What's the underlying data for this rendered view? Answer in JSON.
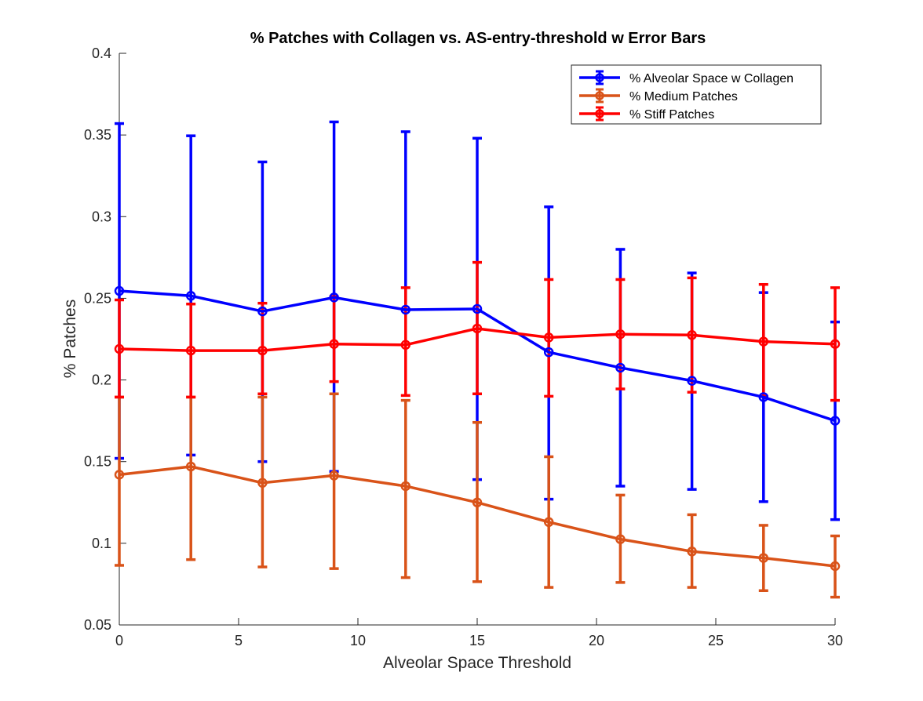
{
  "chart_data": {
    "type": "line",
    "title": "% Patches with Collagen vs. AS-entry-threshold w Error Bars",
    "xlabel": "Alveolar Space Threshold",
    "ylabel": "% Patches",
    "xlim": [
      0,
      30
    ],
    "ylim": [
      0.05,
      0.4
    ],
    "xticks": [
      0,
      5,
      10,
      15,
      20,
      25,
      30
    ],
    "yticks": [
      0.05,
      0.1,
      0.15,
      0.2,
      0.25,
      0.3,
      0.35,
      0.4
    ],
    "xtick_labels": [
      "0",
      "5",
      "10",
      "15",
      "20",
      "25",
      "30"
    ],
    "ytick_labels": [
      "0.05",
      "0.1",
      "0.15",
      "0.2",
      "0.25",
      "0.3",
      "0.35",
      "0.4"
    ],
    "grid": false,
    "legend_position": "top-right",
    "x": [
      0,
      3,
      6,
      9,
      12,
      15,
      18,
      21,
      24,
      27,
      30
    ],
    "series": [
      {
        "name": "% Alveolar Space w Collagen",
        "color": "#0000ff",
        "values": [
          0.2545,
          0.2515,
          0.242,
          0.2505,
          0.243,
          0.2435,
          0.217,
          0.2075,
          0.1995,
          0.1895,
          0.175
        ],
        "lower": [
          0.152,
          0.154,
          0.15,
          0.144,
          0.243,
          0.139,
          0.127,
          0.135,
          0.133,
          0.1255,
          0.1145
        ],
        "upper": [
          0.357,
          0.3495,
          0.3335,
          0.358,
          0.352,
          0.348,
          0.306,
          0.28,
          0.2655,
          0.2535,
          0.2355
        ]
      },
      {
        "name": "% Medium Patches",
        "color": "#d95319",
        "values": [
          0.142,
          0.147,
          0.137,
          0.1415,
          0.135,
          0.125,
          0.113,
          0.1025,
          0.095,
          0.091,
          0.086
        ],
        "lower": [
          0.0865,
          0.09,
          0.0855,
          0.0845,
          0.079,
          0.0765,
          0.073,
          0.076,
          0.073,
          0.071,
          0.067
        ],
        "upper": [
          0.1895,
          0.1895,
          0.1895,
          0.1915,
          0.1875,
          0.174,
          0.153,
          0.1295,
          0.1175,
          0.111,
          0.1045
        ]
      },
      {
        "name": "% Stiff Patches",
        "color": "#ff0000",
        "values": [
          0.219,
          0.218,
          0.218,
          0.222,
          0.2215,
          0.2315,
          0.226,
          0.228,
          0.2275,
          0.2235,
          0.222
        ],
        "lower": [
          0.1895,
          0.1895,
          0.1915,
          0.199,
          0.1905,
          0.1915,
          0.19,
          0.1945,
          0.1925,
          0.19,
          0.1875
        ],
        "upper": [
          0.249,
          0.2465,
          0.247,
          0.251,
          0.2565,
          0.272,
          0.2615,
          0.2615,
          0.2625,
          0.2585,
          0.2565
        ]
      }
    ]
  }
}
